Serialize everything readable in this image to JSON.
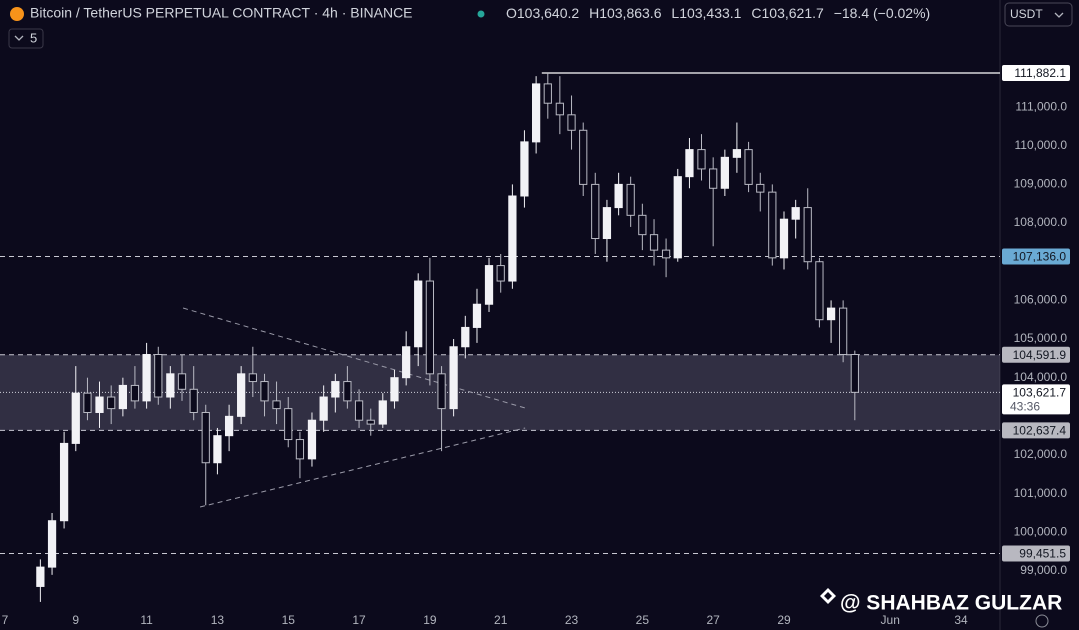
{
  "chart_data": {
    "type": "candlestick",
    "title": "Bitcoin / TetherUS PERPETUAL CONTRACT · 4h · BINANCE",
    "header": {
      "ohlc": [
        {
          "key": "O",
          "text": "103,640.2"
        },
        {
          "key": "H",
          "text": "103,863.6"
        },
        {
          "key": "L",
          "text": "103,433.1"
        },
        {
          "key": "C",
          "text": "103,621.7"
        }
      ],
      "change": "−18.4 (−0.02%)"
    },
    "currency": "USDT",
    "indicator_count": "5",
    "watermark": "@ SHAHBAZ GULZAR",
    "up_color": "#f2f2f6",
    "down_color": "#b9bac4",
    "x": [
      8.0,
      8.33,
      8.67,
      9.0,
      9.33,
      9.67,
      10.0,
      10.33,
      10.67,
      11.0,
      11.33,
      11.67,
      12.0,
      12.33,
      12.67,
      13.0,
      13.33,
      13.67,
      14.0,
      14.33,
      14.67,
      15.0,
      15.33,
      15.67,
      16.0,
      16.33,
      16.67,
      17.0,
      17.33,
      17.67,
      18.0,
      18.33,
      18.67,
      19.0,
      19.33,
      19.67,
      20.0,
      20.33,
      20.67,
      21.0,
      21.33,
      21.67,
      22.0,
      22.33,
      22.67,
      23.0,
      23.33,
      23.67,
      24.0,
      24.33,
      24.67,
      25.0,
      25.33,
      25.67,
      26.0,
      26.33,
      26.67,
      27.0,
      27.33,
      27.67,
      28.0,
      28.33,
      28.67,
      29.0,
      29.33,
      29.67,
      30.0,
      30.33,
      30.67,
      31.0
    ],
    "open": [
      98600,
      99100,
      100300,
      102300,
      103600,
      103100,
      103500,
      103200,
      103800,
      103400,
      104600,
      103500,
      104100,
      103700,
      103100,
      101800,
      102500,
      103000,
      104100,
      103900,
      103400,
      103200,
      102400,
      101900,
      102900,
      103500,
      103900,
      103400,
      102900,
      102800,
      103400,
      104000,
      104800,
      106500,
      104100,
      103200,
      104800,
      105300,
      105900,
      106900,
      106500,
      108700,
      110100,
      111600,
      111100,
      110800,
      110400,
      109000,
      107600,
      108400,
      109000,
      108200,
      107700,
      107300,
      107100,
      109200,
      109900,
      109400,
      108900,
      109700,
      109900,
      109000,
      108800,
      107100,
      108100,
      108400,
      107000,
      105500,
      105800,
      104600
    ],
    "high": [
      99300,
      100500,
      102600,
      104300,
      104000,
      103900,
      103800,
      104000,
      104300,
      104900,
      104800,
      104300,
      104600,
      104300,
      103300,
      102700,
      103300,
      104300,
      104800,
      104100,
      103900,
      103500,
      102600,
      103100,
      103800,
      104100,
      104300,
      103700,
      103200,
      103600,
      104200,
      105200,
      106700,
      107100,
      104300,
      105000,
      105600,
      106300,
      107100,
      107200,
      109000,
      110400,
      111800,
      111882,
      111800,
      111300,
      110600,
      109300,
      108600,
      109300,
      109200,
      108500,
      108100,
      107600,
      109400,
      110200,
      110300,
      109700,
      109900,
      110600,
      110100,
      109300,
      109000,
      108300,
      108600,
      108900,
      107100,
      106000,
      106000,
      104700
    ],
    "low": [
      98200,
      98900,
      100100,
      102100,
      102900,
      102700,
      102800,
      103000,
      103200,
      103200,
      103300,
      103200,
      103400,
      102900,
      100700,
      101500,
      102100,
      102800,
      103500,
      103000,
      102800,
      102200,
      101400,
      101700,
      102600,
      103100,
      103200,
      102700,
      102500,
      102700,
      103200,
      103800,
      104300,
      103800,
      102100,
      103000,
      104500,
      104900,
      105700,
      106200,
      106300,
      108400,
      109800,
      110700,
      110300,
      109900,
      108700,
      107200,
      107000,
      108200,
      107900,
      107300,
      106900,
      106600,
      107000,
      108900,
      109100,
      107400,
      108700,
      109300,
      108800,
      108300,
      106900,
      106800,
      107600,
      106800,
      105300,
      104900,
      104400,
      102900
    ],
    "close": [
      99100,
      100300,
      102300,
      103600,
      103100,
      103500,
      103200,
      103800,
      103400,
      104600,
      103500,
      104100,
      103700,
      103100,
      101800,
      102500,
      103000,
      104100,
      103900,
      103400,
      103200,
      102400,
      101900,
      102900,
      103500,
      103900,
      103400,
      102900,
      102800,
      103400,
      104000,
      104800,
      106500,
      104100,
      103200,
      104800,
      105300,
      105900,
      106900,
      106500,
      108700,
      110100,
      111600,
      111100,
      110800,
      110400,
      109000,
      107600,
      108400,
      109000,
      108200,
      107700,
      107300,
      107100,
      109200,
      109900,
      109400,
      108900,
      109700,
      109900,
      109000,
      108800,
      107100,
      108100,
      108400,
      107000,
      105500,
      105800,
      104600,
      103621.7
    ],
    "xlim": [
      6.86,
      35.1
    ],
    "ylim": [
      98120,
      113770
    ],
    "xticks": [
      7,
      9,
      11,
      13,
      15,
      17,
      19,
      21,
      23,
      25,
      27,
      29,
      {
        "value": 32,
        "label": "Jun"
      },
      34
    ],
    "yticks": [
      {
        "value": 99000,
        "label": "99,000.0"
      },
      {
        "value": 100000,
        "label": "100,000.0"
      },
      {
        "value": 101000,
        "label": "101,000.0"
      },
      {
        "value": 102000,
        "label": "102,000.0"
      },
      {
        "value": 104000,
        "label": "104,000.0"
      },
      {
        "value": 105000,
        "label": "105,000.0"
      },
      {
        "value": 106000,
        "label": "106,000.0"
      },
      {
        "value": 108000,
        "label": "108,000.0"
      },
      {
        "value": 109000,
        "label": "109,000.0"
      },
      {
        "value": 110000,
        "label": "110,000.0"
      },
      {
        "value": 111000,
        "label": "111,000.0"
      }
    ],
    "grid": false,
    "levels": {
      "values": [
        111882.1,
        107136.0,
        104591.9,
        102637.4,
        99451.5
      ],
      "value_labels": [
        "111,882.1",
        "107,136.0",
        "104,591.9",
        "102,637.4",
        "99,451.5"
      ],
      "label_colors": [
        "#ffffff",
        "#6aaad4",
        "#b8b8c0",
        "#b8b8c0",
        "#b8b8c0"
      ]
    },
    "current_price": {
      "value": 103621.7,
      "label": "103,621.7",
      "countdown": "43:36"
    },
    "trendlines": [
      {
        "x": [
          12.03,
          21.69
        ],
        "y": [
          105802,
          103216
        ]
      },
      {
        "x": [
          12.51,
          21.69
        ],
        "y": [
          100656,
          102699
        ]
      }
    ]
  }
}
